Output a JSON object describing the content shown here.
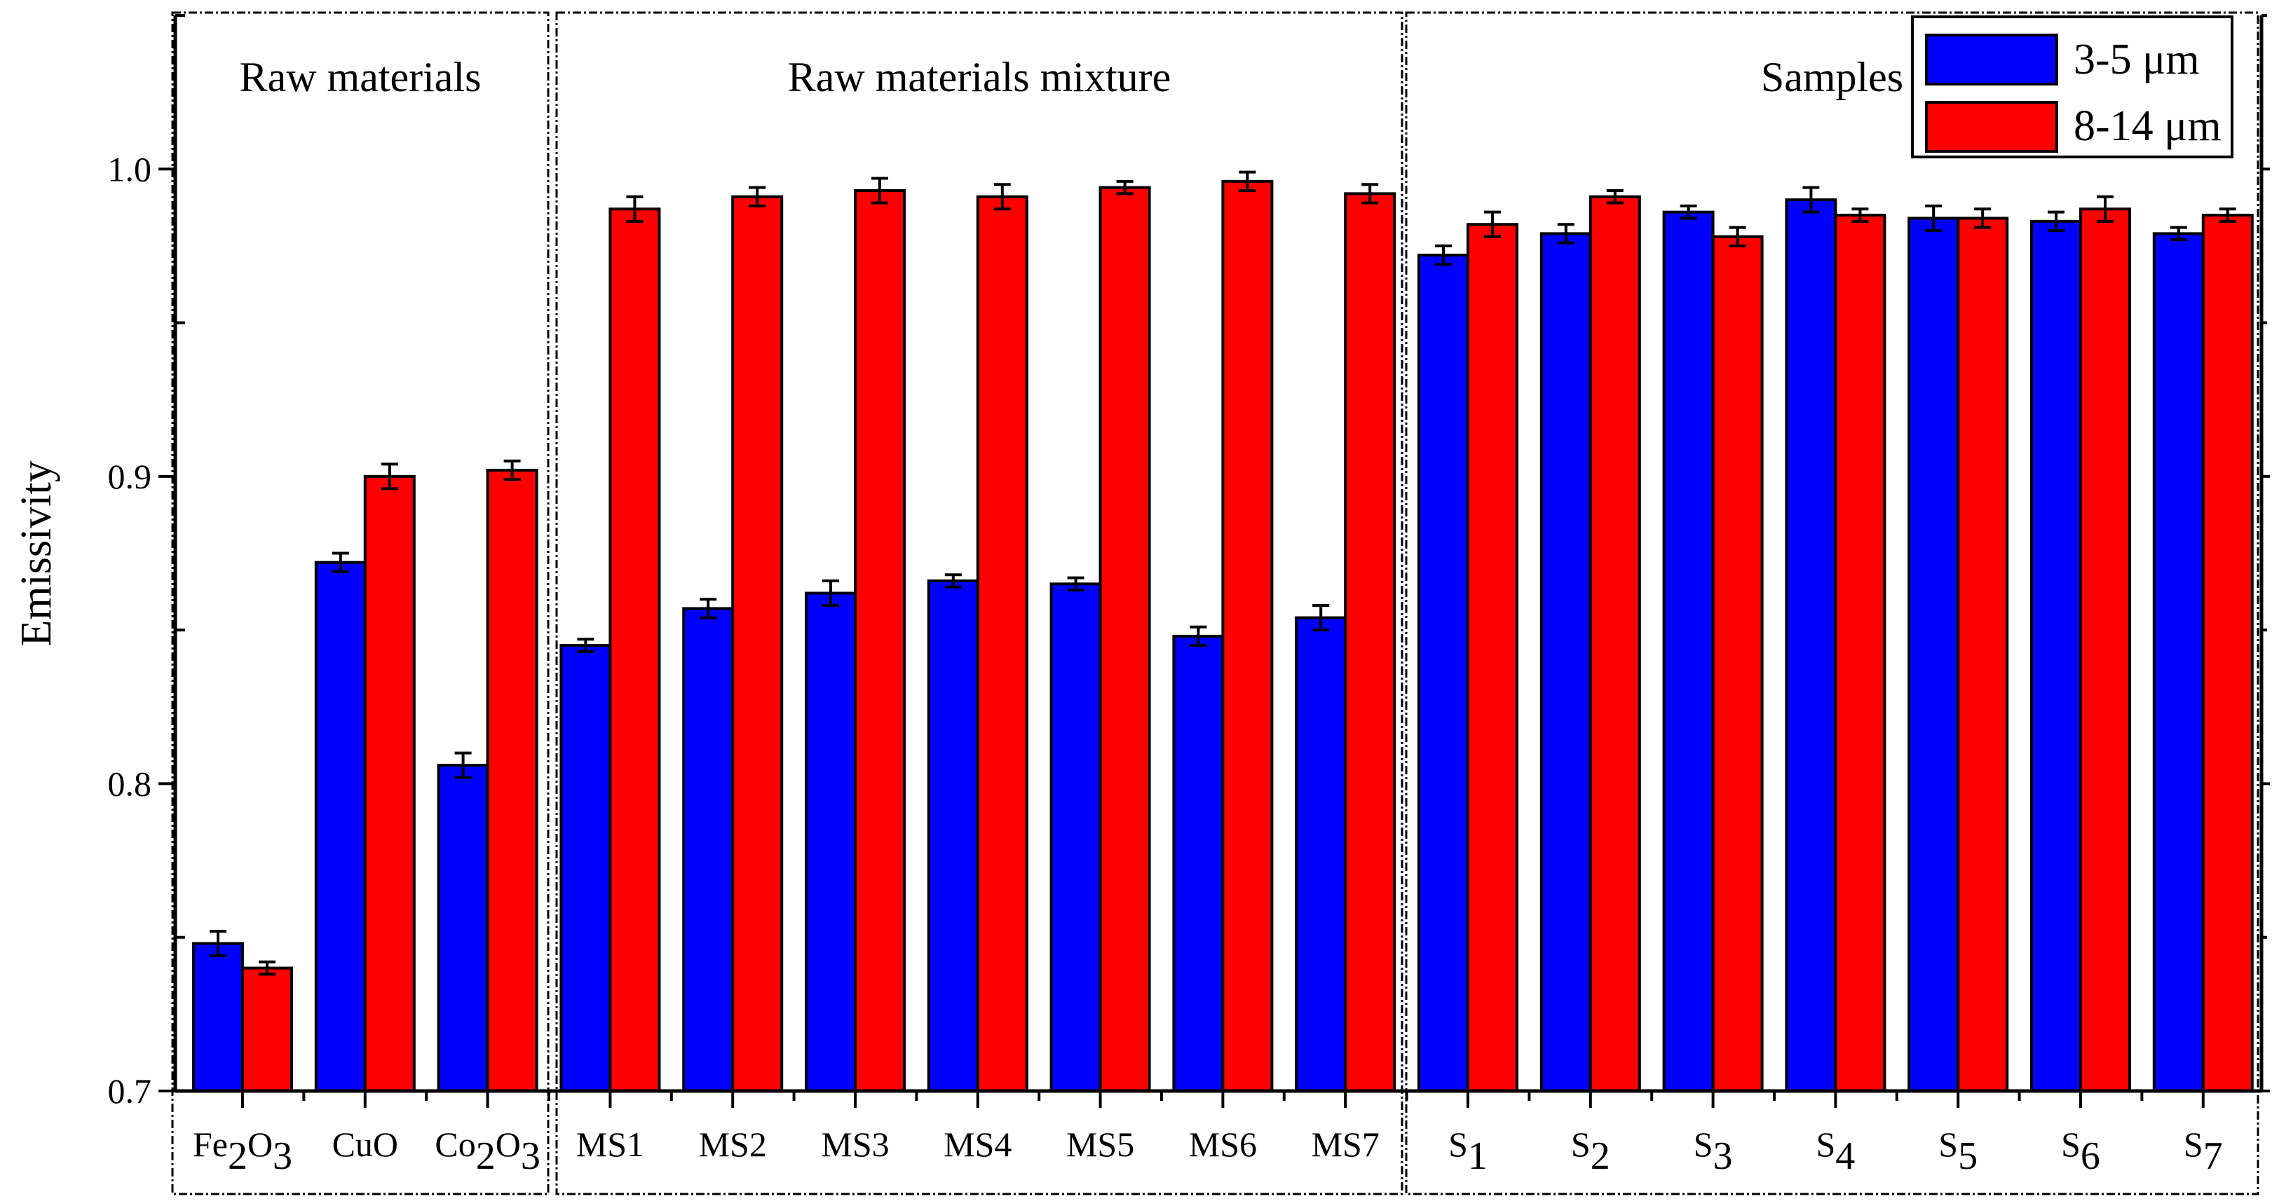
{
  "chart_data": {
    "type": "bar",
    "title": "",
    "xlabel": "",
    "ylabel": "Emissivity",
    "ylim": [
      0.7,
      1.05
    ],
    "yticks": [
      "0.7",
      "0.8",
      "0.9",
      "1.0"
    ],
    "grid": false,
    "legend_position": "top-right",
    "groups": [
      {
        "label": "Raw materials",
        "categories": [
          "Fe2O3",
          "CuO",
          "Co2O3"
        ]
      },
      {
        "label": "Raw materials mixture",
        "categories": [
          "MS1",
          "MS2",
          "MS3",
          "MS4",
          "MS5",
          "MS6",
          "MS7"
        ]
      },
      {
        "label": "Samples",
        "categories": [
          "S1",
          "S2",
          "S3",
          "S4",
          "S5",
          "S6",
          "S7"
        ]
      }
    ],
    "categories": [
      "Fe2O3",
      "CuO",
      "Co2O3",
      "MS1",
      "MS2",
      "MS3",
      "MS4",
      "MS5",
      "MS6",
      "MS7",
      "S1",
      "S2",
      "S3",
      "S4",
      "S5",
      "S6",
      "S7"
    ],
    "series": [
      {
        "name": "3-5 μm",
        "color": "#0000ff",
        "values": [
          0.748,
          0.872,
          0.806,
          0.845,
          0.857,
          0.862,
          0.866,
          0.865,
          0.848,
          0.854,
          0.972,
          0.979,
          0.986,
          0.99,
          0.984,
          0.983,
          0.979
        ],
        "errors": [
          0.004,
          0.003,
          0.004,
          0.002,
          0.003,
          0.004,
          0.002,
          0.002,
          0.003,
          0.004,
          0.003,
          0.003,
          0.002,
          0.004,
          0.004,
          0.003,
          0.002
        ]
      },
      {
        "name": "8-14 μm",
        "color": "#ff0000",
        "values": [
          0.74,
          0.9,
          0.902,
          0.987,
          0.991,
          0.993,
          0.991,
          0.994,
          0.996,
          0.992,
          0.982,
          0.991,
          0.978,
          0.985,
          0.984,
          0.987,
          0.985
        ],
        "errors": [
          0.002,
          0.004,
          0.003,
          0.004,
          0.003,
          0.004,
          0.004,
          0.002,
          0.003,
          0.003,
          0.004,
          0.002,
          0.003,
          0.002,
          0.003,
          0.004,
          0.002
        ]
      }
    ]
  }
}
